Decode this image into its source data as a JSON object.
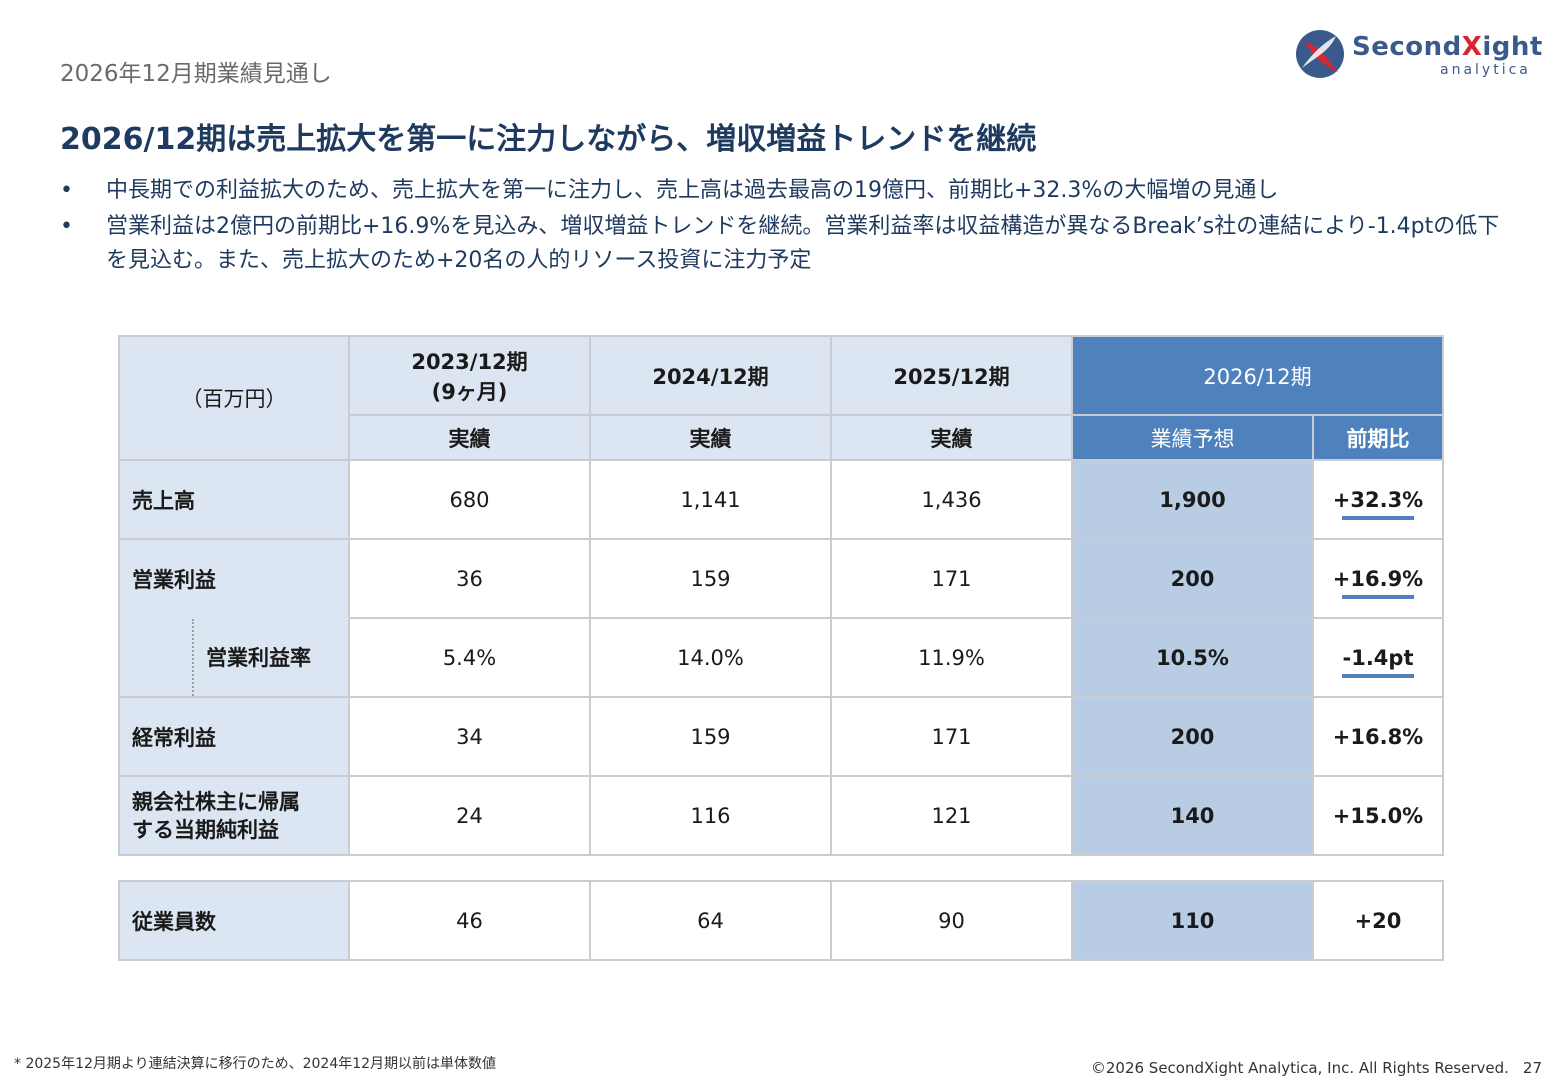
{
  "header": {
    "section_label": "2026年12月期業績見通し",
    "logo": {
      "name_prefix": "Second",
      "name_x": "X",
      "name_suffix": "ight",
      "sub": "analytica"
    }
  },
  "headline": "2026/12期は売上拡大を第一に注力しながら、増収増益トレンドを継続",
  "bullets": [
    {
      "dot": "•",
      "text": "中長期での利益拡大のため、売上拡大を第一に注力し、売上高は過去最高の19億円、前期比+32.3%の大幅増の見通し"
    },
    {
      "dot": "•",
      "text": "営業利益は2億円の前期比+16.9%を見込み、増収増益トレンドを継続。営業利益率は収益構造が異なるBreak’s社の連結により-1.4ptの低下を見込む。また、売上拡大のため+20名の人的リソース投資に注力予定"
    }
  ],
  "table": {
    "unit": "（百万円）",
    "periods": [
      {
        "label1": "2023/12期",
        "label2": "(9ヶ月)",
        "sub": "実績"
      },
      {
        "label1": "2024/12期",
        "label2": "",
        "sub": "実績"
      },
      {
        "label1": "2025/12期",
        "label2": "",
        "sub": "実績"
      }
    ],
    "forecast": {
      "label": "2026/12期",
      "sub": "業績予想",
      "yoy_header": "前期比"
    },
    "rows": [
      {
        "label": "売上高",
        "values": [
          "680",
          "1,141",
          "1,436"
        ],
        "forecast": "1,900",
        "yoy": "+32.3%"
      },
      {
        "label": "営業利益",
        "values": [
          "36",
          "159",
          "171"
        ],
        "forecast": "200",
        "yoy": "+16.9%"
      },
      {
        "label": "営業利益率",
        "values": [
          "5.4%",
          "14.0%",
          "11.9%"
        ],
        "forecast": "10.5%",
        "yoy": "-1.4pt"
      },
      {
        "label": "経常利益",
        "values": [
          "34",
          "159",
          "171"
        ],
        "forecast": "200",
        "yoy": "+16.8%"
      },
      {
        "label_line1": "親会社株主に帰属",
        "label_line2": "する当期純利益",
        "values": [
          "24",
          "116",
          "121"
        ],
        "forecast": "140",
        "yoy": "+15.0%"
      }
    ],
    "employees": {
      "label": "従業員数",
      "values": [
        "46",
        "64",
        "90"
      ],
      "forecast": "110",
      "yoy": "+20"
    }
  },
  "footer": {
    "footnote": "* 2025年12月期より連結決算に移行のため、2024年12月期以前は単体数値",
    "copyright": "©2026 SecondXight Analytica, Inc. All Rights Reserved.",
    "page": "27"
  },
  "colors": {
    "header_light": "#dce6f2",
    "header_blue": "#4f81bd",
    "forecast_fill": "#b8cce4",
    "title_navy": "#1f3a5f",
    "logo_red": "#d7262f"
  }
}
